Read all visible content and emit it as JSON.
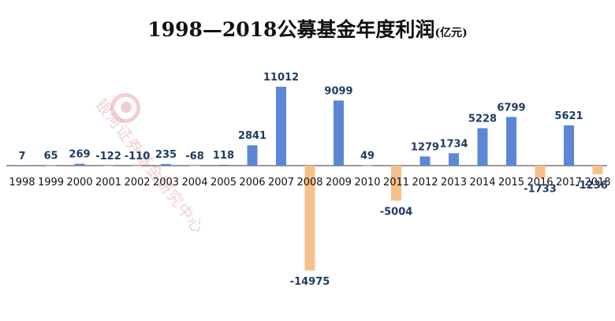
{
  "title_main": "1998—2018公募基金年度利润",
  "title_unit": "(亿元)",
  "watermark_text": "银河证券基金研究中心",
  "colors": {
    "positive": "#5b87d4",
    "negative": "#f5c08a",
    "axis": "#333333",
    "label": "#1f3a5f"
  },
  "chart_data": {
    "type": "bar",
    "title": "1998—2018公募基金年度利润(亿元)",
    "categories": [
      "1998",
      "1999",
      "2000",
      "2001",
      "2002",
      "2003",
      "2004",
      "2005",
      "2006",
      "2007",
      "2008",
      "2009",
      "2010",
      "2011",
      "2012",
      "2013",
      "2014",
      "2015",
      "2016",
      "2017",
      "2018"
    ],
    "values": [
      7,
      65,
      269,
      -122,
      -110,
      235,
      -68,
      118,
      2841,
      11012,
      -14975,
      9099,
      49,
      -5004,
      1279,
      1734,
      5228,
      6799,
      -1733,
      5621,
      -1236
    ],
    "labels": [
      "7",
      "65",
      "269",
      "-122",
      "-110",
      "235",
      "-68",
      "118",
      "2841",
      "11012",
      "-14975",
      "9099",
      "49",
      "-5004",
      "1279",
      "1734",
      "5228",
      "6799",
      "-1733",
      "5621",
      "-1236"
    ],
    "ylim": [
      -15000,
      11100
    ],
    "grid": false,
    "legend": "none"
  }
}
